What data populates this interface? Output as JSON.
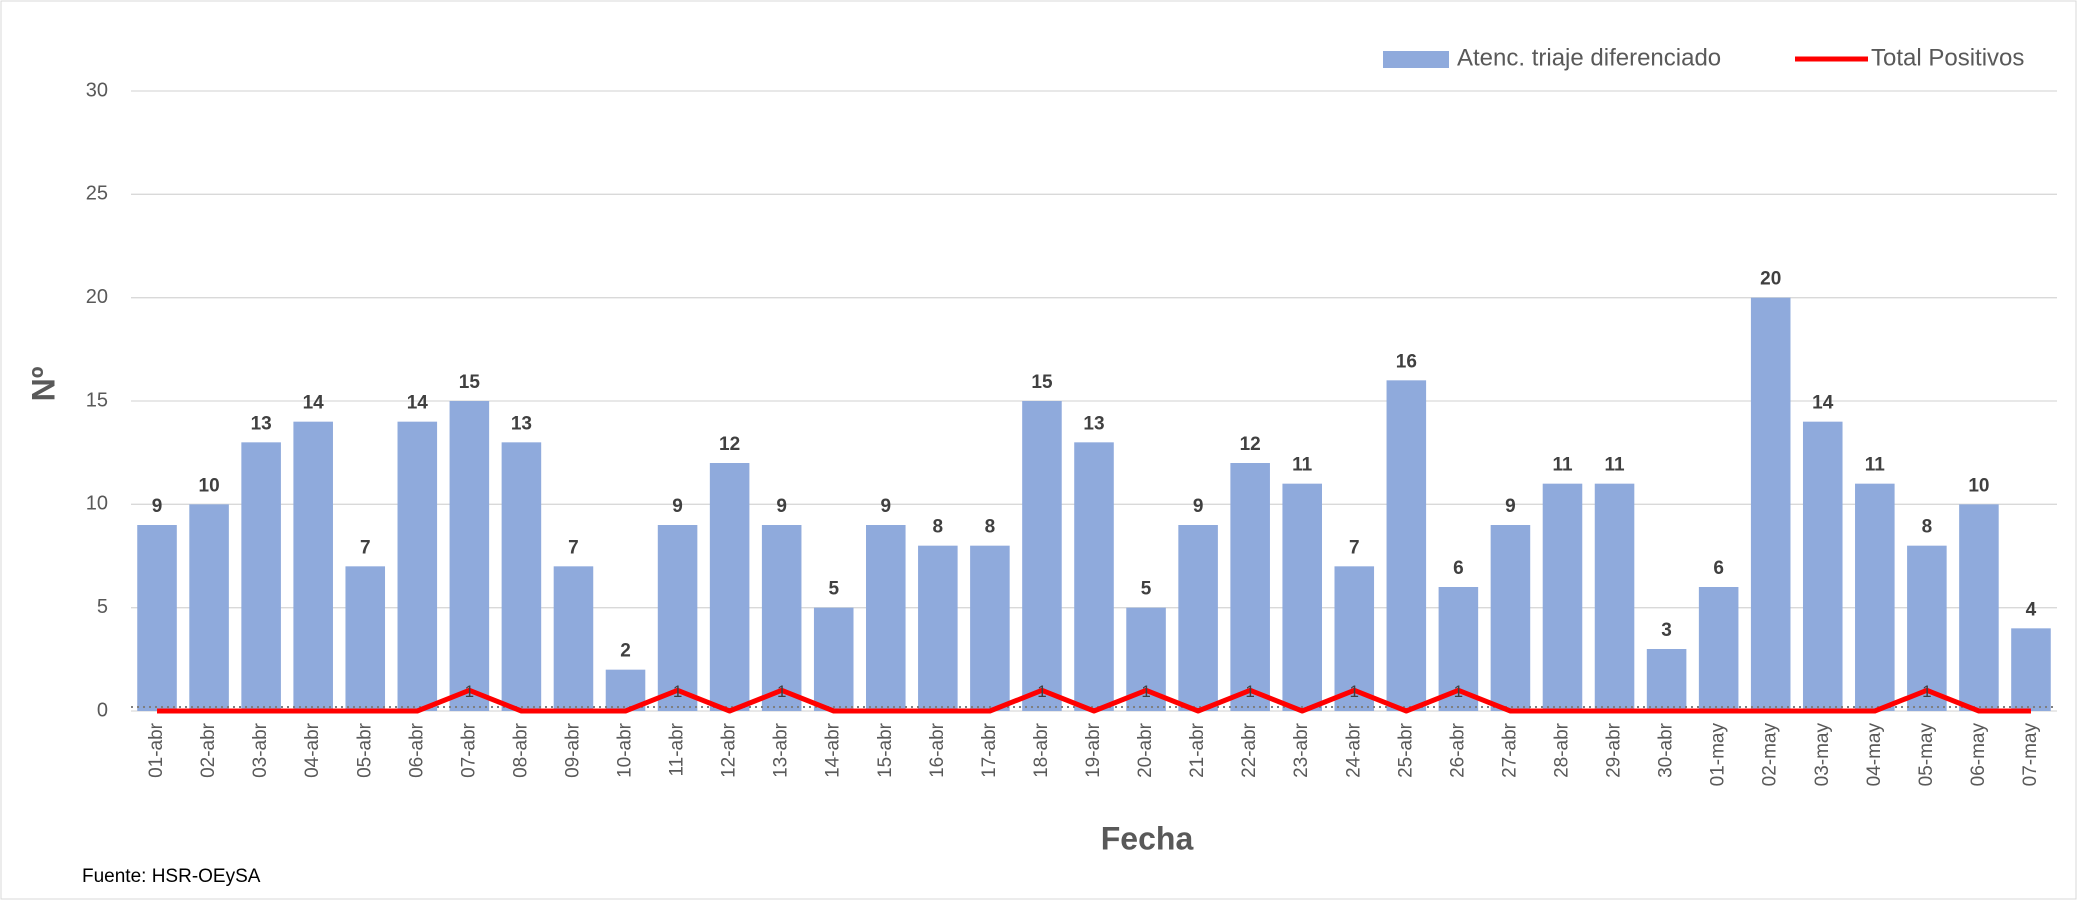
{
  "chart_data": {
    "type": "bar",
    "x_label": "Fecha",
    "y_label": "Nº",
    "source": "Fuente: HSR-OEySA",
    "categories": [
      "01-abr",
      "02-abr",
      "03-abr",
      "04-abr",
      "05-abr",
      "06-abr",
      "07-abr",
      "08-abr",
      "09-abr",
      "10-abr",
      "11-abr",
      "12-abr",
      "13-abr",
      "14-abr",
      "15-abr",
      "16-abr",
      "17-abr",
      "18-abr",
      "19-abr",
      "20-abr",
      "21-abr",
      "22-abr",
      "23-abr",
      "24-abr",
      "25-abr",
      "26-abr",
      "27-abr",
      "28-abr",
      "29-abr",
      "30-abr",
      "01-may",
      "02-may",
      "03-may",
      "04-may",
      "05-may",
      "06-may",
      "07-may"
    ],
    "series": [
      {
        "name": "Atenc. triaje diferenciado",
        "type": "bar",
        "color": "#8faadc",
        "values": [
          9,
          10,
          13,
          14,
          7,
          14,
          15,
          13,
          7,
          2,
          9,
          12,
          9,
          5,
          9,
          8,
          8,
          15,
          13,
          5,
          9,
          12,
          11,
          7,
          16,
          6,
          9,
          11,
          11,
          3,
          6,
          20,
          14,
          11,
          8,
          10,
          4
        ]
      },
      {
        "name": "Total Positivos",
        "type": "line",
        "color": "#ff0000",
        "values": [
          0,
          0,
          0,
          0,
          0,
          0,
          1,
          0,
          0,
          0,
          1,
          0,
          1,
          0,
          0,
          0,
          0,
          1,
          0,
          1,
          0,
          1,
          0,
          1,
          0,
          1,
          0,
          0,
          0,
          0,
          0,
          0,
          0,
          0,
          1,
          0,
          0
        ]
      }
    ],
    "ylim": [
      0,
      30
    ],
    "yticks": [
      0,
      5,
      10,
      15,
      20,
      25,
      30
    ],
    "grid": true,
    "legend": "top-right"
  }
}
